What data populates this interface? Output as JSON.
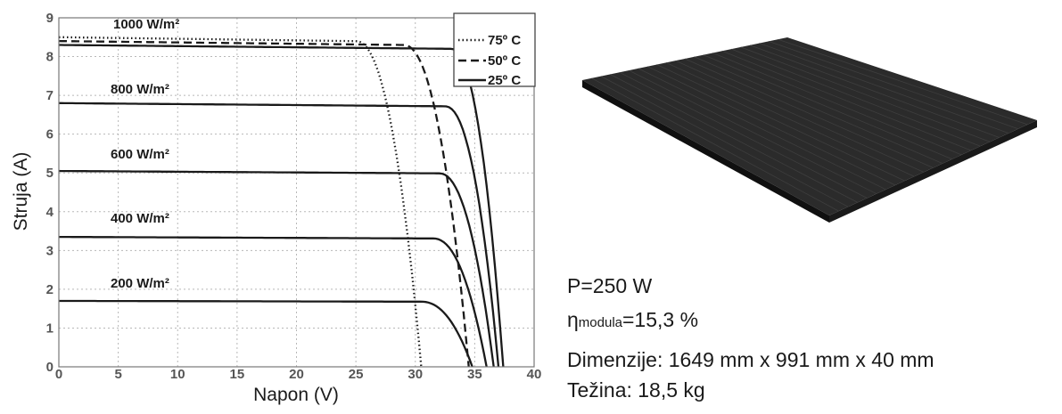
{
  "chart_data": {
    "type": "line",
    "xlabel": "Napon (V)",
    "ylabel": "Struja (A)",
    "xlim": [
      0,
      40
    ],
    "ylim": [
      0,
      9
    ],
    "xticks": [
      0,
      5,
      10,
      15,
      20,
      25,
      30,
      35,
      40
    ],
    "yticks": [
      0,
      1,
      2,
      3,
      4,
      5,
      6,
      7,
      8,
      9
    ],
    "grid": true,
    "legend_position": "top-right",
    "legend": [
      {
        "label": "75º C",
        "style": "dotted"
      },
      {
        "label": "50º C",
        "style": "dashed"
      },
      {
        "label": "25º C",
        "style": "solid"
      }
    ],
    "annotations": [
      "1000 W/m²",
      "800 W/m²",
      "600 W/m²",
      "400 W/m²",
      "200 W/m²"
    ],
    "series": [
      {
        "name": "25º C",
        "style": "solid",
        "annotation": "1000 W/m²",
        "isc": 8.3,
        "voc": 37.4,
        "knee": 33.0
      },
      {
        "name": "50º C",
        "style": "dashed",
        "annotation": "1000 W/m²",
        "isc": 8.4,
        "voc": 34.5,
        "knee": 29.0
      },
      {
        "name": "75º C",
        "style": "dotted",
        "annotation": "1000 W/m²",
        "isc": 8.5,
        "voc": 30.5,
        "knee": 25.0
      },
      {
        "style": "solid",
        "annotation": "800 W/m²",
        "isc": 6.8,
        "voc": 37.0,
        "knee": 32.5
      },
      {
        "style": "solid",
        "annotation": "600 W/m²",
        "isc": 5.05,
        "voc": 36.6,
        "knee": 32.0
      },
      {
        "style": "solid",
        "annotation": "400 W/m²",
        "isc": 3.35,
        "voc": 36.0,
        "knee": 31.5
      },
      {
        "style": "solid",
        "annotation": "200 W/m²",
        "isc": 1.7,
        "voc": 34.8,
        "knee": 30.5
      }
    ]
  },
  "specs": {
    "power": "P=250 W",
    "eff_symbol": "η",
    "eff_sub": "modula",
    "eff_value": "=15,3 %",
    "dimensions": "Dimenzije: 1649 mm x 991 mm x 40 mm",
    "weight": "Težina: 18,5 kg"
  },
  "colors": {
    "grid": "#b8b8b8",
    "curve": "#1a1a1a",
    "panel_top": "#2c2c2c",
    "panel_side": "#141414"
  }
}
